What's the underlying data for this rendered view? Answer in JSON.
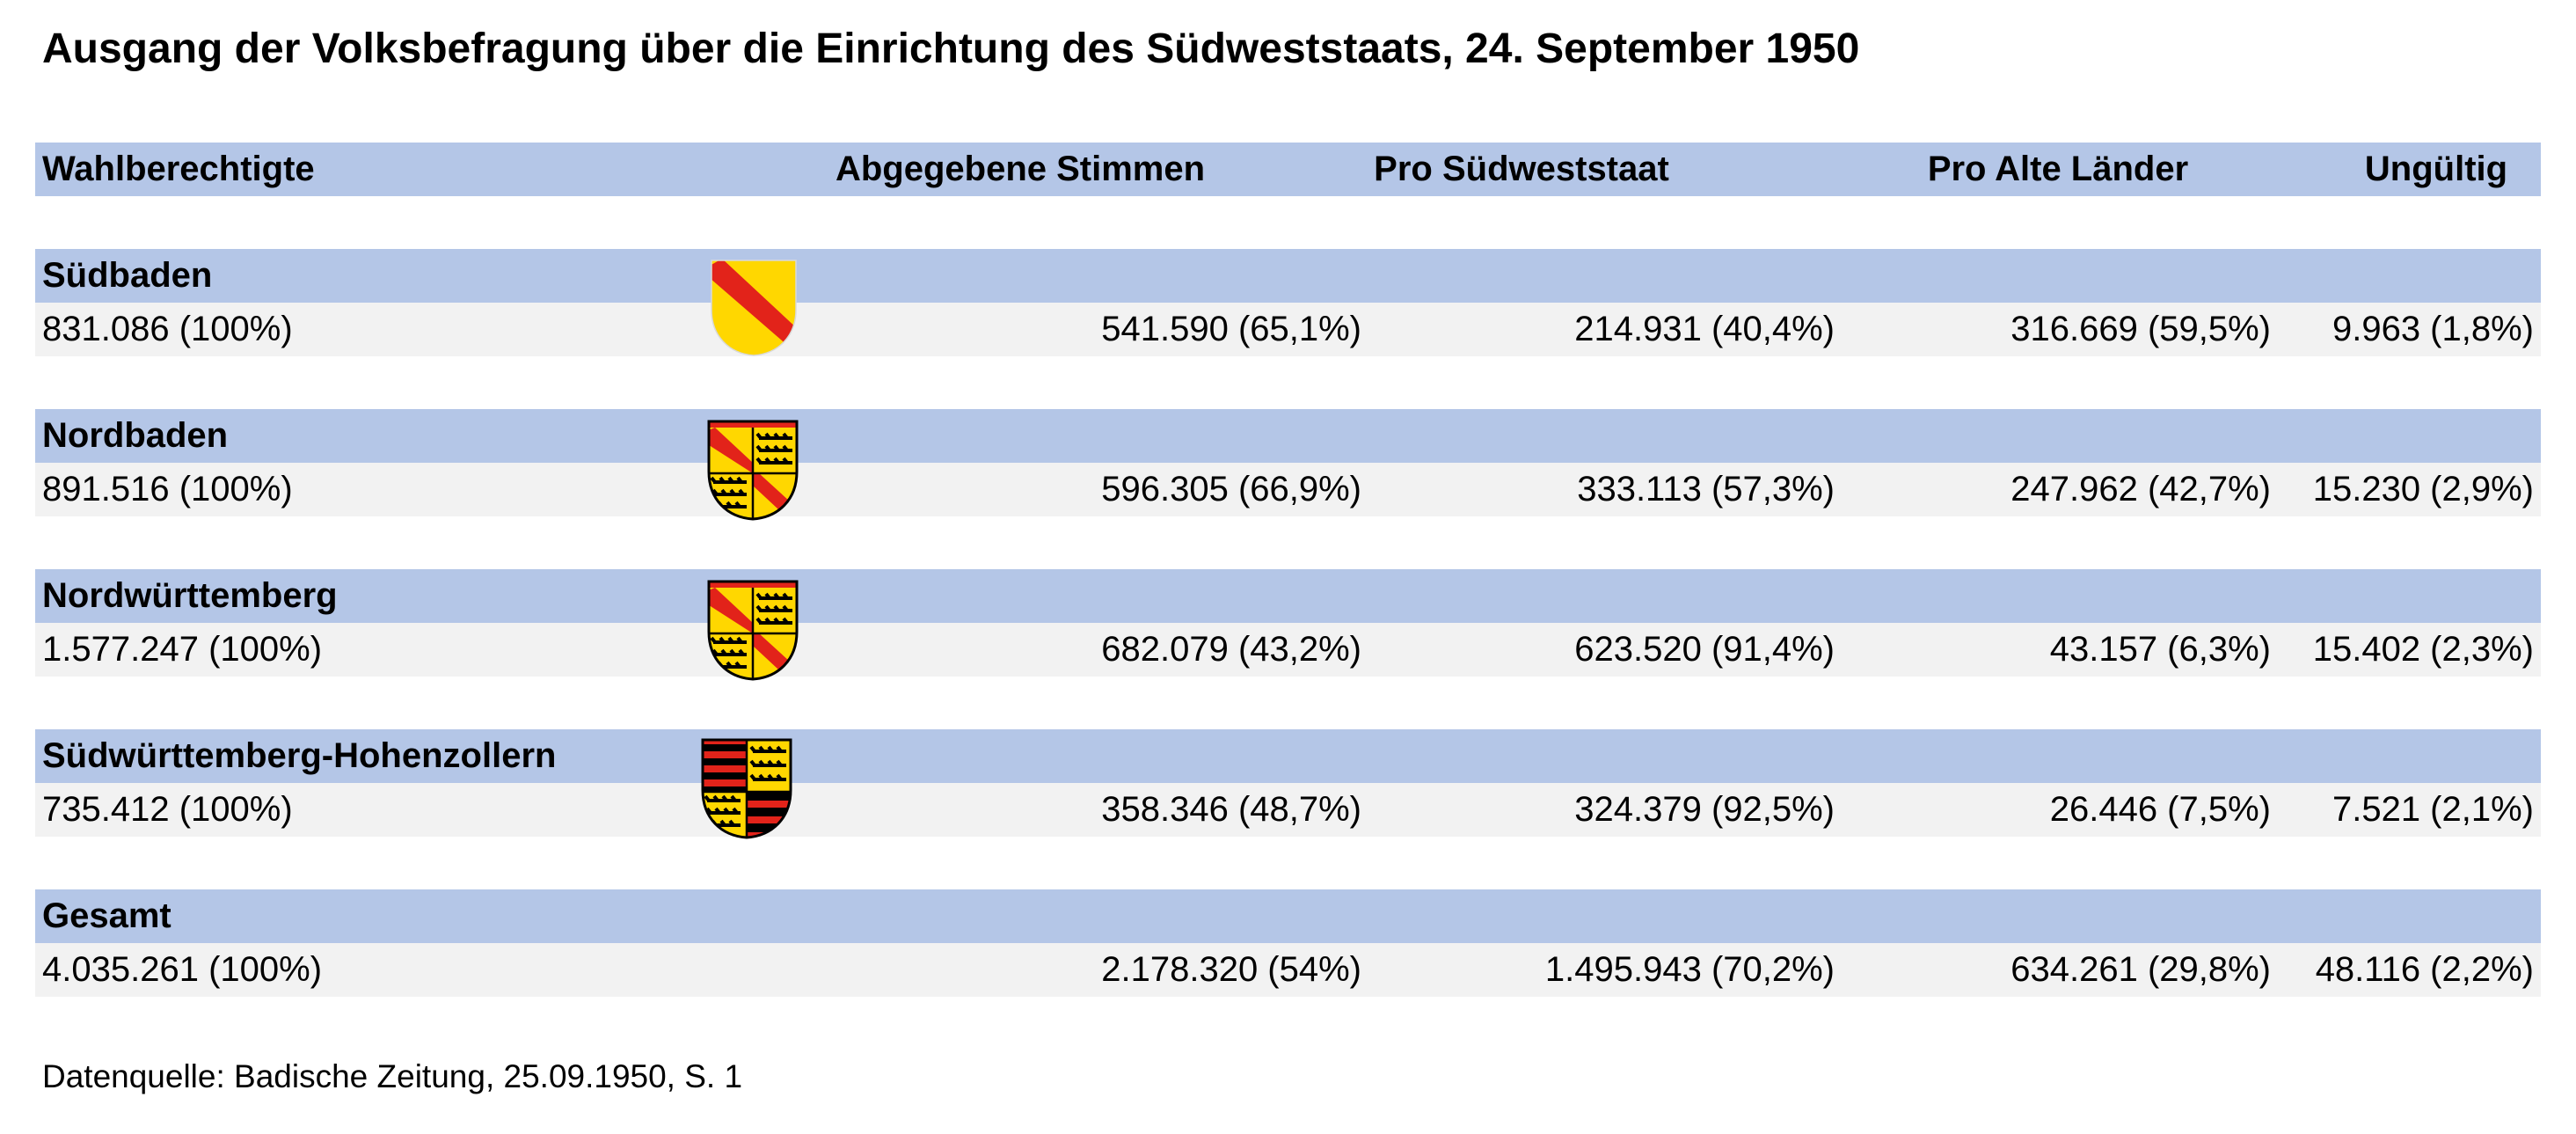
{
  "title": "Ausgang der Volksbefragung über die Einrichtung des Südweststaats, 24. September 1950",
  "header": {
    "col1": "Wahlberechtigte",
    "col2": "Abgegebene Stimmen",
    "col3": "Pro Südweststaat",
    "col4": "Pro Alte Länder",
    "col5": "Ungültig"
  },
  "rows": [
    {
      "name": "Südbaden",
      "crest": "baden-crest-icon",
      "eligible": "831.086 (100%)",
      "cast": "541.590 (65,1%)",
      "pro_sw": "214.931 (40,4%)",
      "pro_old": "316.669 (59,5%)",
      "invalid": "9.963 (1,8%)"
    },
    {
      "name": "Nordbaden",
      "crest": "wuerttemberg-baden-crest-icon",
      "eligible": "891.516 (100%)",
      "cast": "596.305 (66,9%)",
      "pro_sw": "333.113 (57,3%)",
      "pro_old": "247.962 (42,7%)",
      "invalid": "15.230 (2,9%)"
    },
    {
      "name": "Nordwürttemberg",
      "crest": "wuerttemberg-baden-crest-icon",
      "eligible": "1.577.247 (100%)",
      "cast": "682.079 (43,2%)",
      "pro_sw": "623.520 (91,4%)",
      "pro_old": "43.157 (6,3%)",
      "invalid": "15.402 (2,3%)"
    },
    {
      "name": "Südwürttemberg-Hohenzollern",
      "crest": "wuerttemberg-hohenzollern-crest-icon",
      "eligible": "735.412 (100%)",
      "cast": "358.346 (48,7%)",
      "pro_sw": "324.379 (92,5%)",
      "pro_old": "26.446 (7,5%)",
      "invalid": "7.521 (2,1%)"
    },
    {
      "name": "Gesamt",
      "eligible": "4.035.261 (100%)",
      "cast": "2.178.320 (54%)",
      "pro_sw": "1.495.943 (70,2%)",
      "pro_old": "634.261 (29,8%)",
      "invalid": "48.116 (2,2%)"
    }
  ],
  "source": "Datenquelle: Badische Zeitung, 25.09.1950, S. 1",
  "colors": {
    "band_blue": "#b4c6e7",
    "band_grey": "#f2f2f2",
    "crest_yellow": "#ffd700",
    "crest_red": "#e2231a"
  }
}
